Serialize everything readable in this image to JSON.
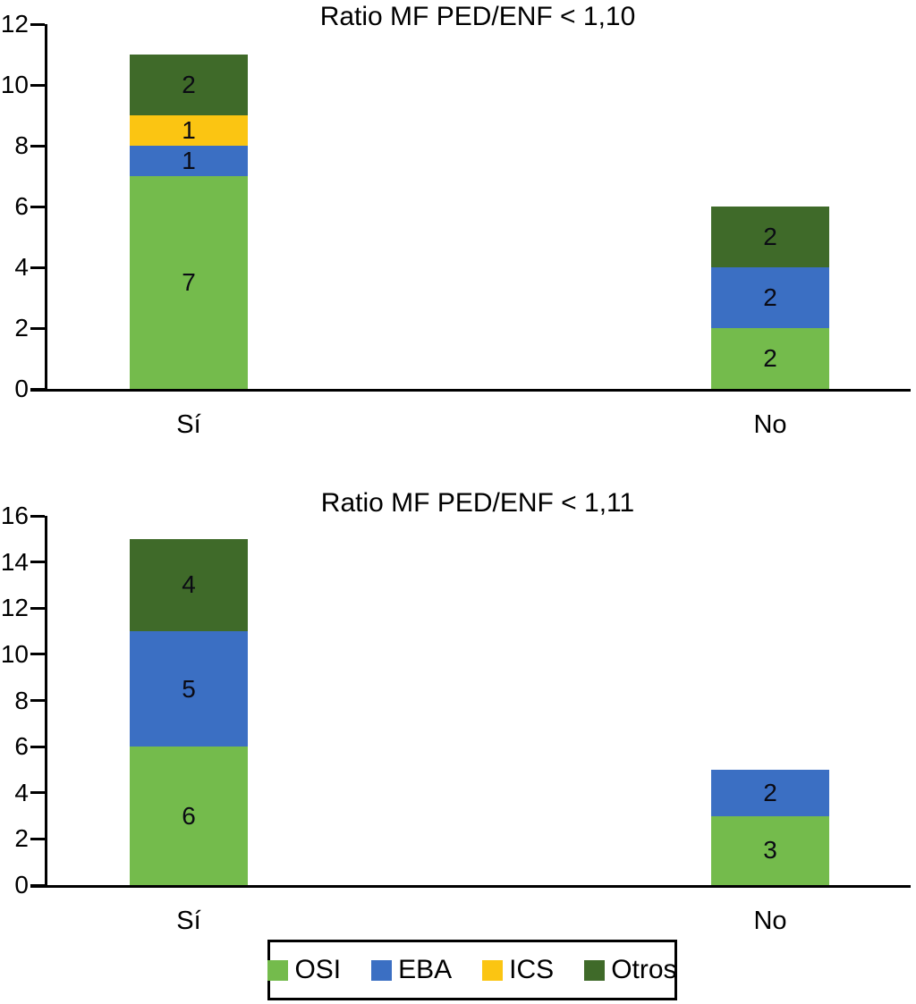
{
  "chart_data": [
    {
      "type": "bar",
      "stacked": true,
      "title": "Ratio MF PED/ENF < 1,10",
      "categories": [
        "Sí",
        "No"
      ],
      "series": [
        {
          "name": "OSI",
          "color": "#74BB4C",
          "values": [
            7,
            2
          ]
        },
        {
          "name": "EBA",
          "color": "#3B6FC3",
          "values": [
            1,
            2
          ]
        },
        {
          "name": "ICS",
          "color": "#FBC512",
          "values": [
            1,
            0
          ]
        },
        {
          "name": "Otros",
          "color": "#3F6A29",
          "values": [
            2,
            2
          ]
        }
      ],
      "totals": [
        11,
        6
      ],
      "ylim": [
        0,
        12
      ],
      "ytick_step": 2,
      "yticks": [
        0,
        2,
        4,
        6,
        8,
        10,
        12
      ],
      "grid": false,
      "bar_value_labels": true
    },
    {
      "type": "bar",
      "stacked": true,
      "title": "Ratio MF PED/ENF < 1,11",
      "categories": [
        "Sí",
        "No"
      ],
      "series": [
        {
          "name": "OSI",
          "color": "#74BB4C",
          "values": [
            6,
            3
          ]
        },
        {
          "name": "EBA",
          "color": "#3B6FC3",
          "values": [
            5,
            2
          ]
        },
        {
          "name": "ICS",
          "color": "#FBC512",
          "values": [
            0,
            0
          ]
        },
        {
          "name": "Otros",
          "color": "#3F6A29",
          "values": [
            4,
            0
          ]
        }
      ],
      "totals": [
        15,
        5
      ],
      "ylim": [
        0,
        16
      ],
      "ytick_step": 2,
      "yticks": [
        0,
        2,
        4,
        6,
        8,
        10,
        12,
        14,
        16
      ],
      "grid": false,
      "bar_value_labels": true
    }
  ],
  "legend": {
    "position": "bottom-center",
    "items": [
      {
        "label": "OSI",
        "color": "#74BB4C"
      },
      {
        "label": "EBA",
        "color": "#3B6FC3"
      },
      {
        "label": "ICS",
        "color": "#FBC512"
      },
      {
        "label": "Otros",
        "color": "#3F6A29"
      }
    ]
  }
}
